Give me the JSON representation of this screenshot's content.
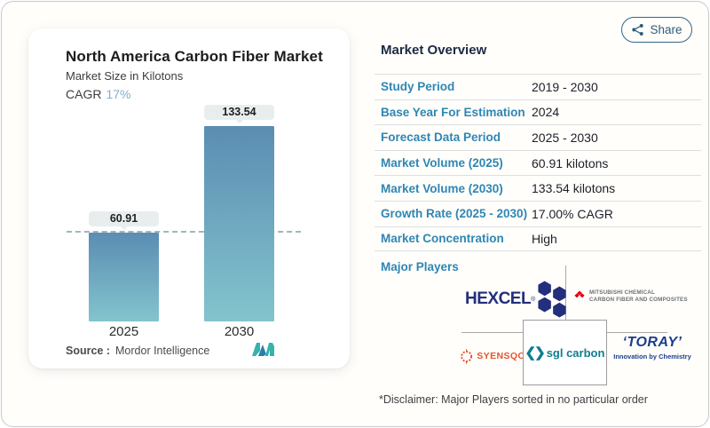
{
  "share": {
    "label": "Share"
  },
  "chart_card": {
    "title": "North America Carbon Fiber Market",
    "subtitle": "Market Size in Kilotons",
    "cagr_label": "CAGR",
    "cagr_value": "17%",
    "source_label": "Source :",
    "source_value": "Mordor Intelligence"
  },
  "chart_data": {
    "type": "bar",
    "title": "North America Carbon Fiber Market",
    "ylabel": "Kilotons",
    "categories": [
      "2025",
      "2030"
    ],
    "values": [
      60.91,
      133.54
    ],
    "value_labels": [
      "60.91",
      "133.54"
    ],
    "dashed_reference_y": 60.91,
    "bar_gradient": [
      "#5b8db2",
      "#83c4cd"
    ],
    "grid": "off",
    "legend": "none"
  },
  "overview": {
    "heading": "Market Overview",
    "rows": [
      {
        "label": "Study Period",
        "value": "2019 - 2030"
      },
      {
        "label": "Base Year For Estimation",
        "value": "2024"
      },
      {
        "label": "Forecast Data Period",
        "value": "2025 - 2030"
      },
      {
        "label": "Market Volume (2025)",
        "value": "60.91 kilotons"
      },
      {
        "label": "Market Volume (2030)",
        "value": "133.54 kilotons"
      },
      {
        "label": "Growth Rate (2025 - 2030)",
        "value": "17.00% CAGR"
      },
      {
        "label": "Market Concentration",
        "value": "High"
      }
    ],
    "major_players_label": "Major Players",
    "disclaimer": "*Disclaimer: Major Players sorted in no particular order"
  },
  "logos": {
    "hexcel": {
      "text": "HEXCEL",
      "reg_mark": "®"
    },
    "mitsubishi": {
      "line1": "MITSUBISHI CHEMICAL",
      "line2": "CARBON FIBER AND COMPOSITES"
    },
    "syensqo": {
      "text": "SYENSQO"
    },
    "sgl": {
      "brackets": "❮❯",
      "text": "sgl carbon"
    },
    "toray": {
      "text": "‘TORAY’",
      "tagline": "Innovation by Chemistry"
    }
  }
}
